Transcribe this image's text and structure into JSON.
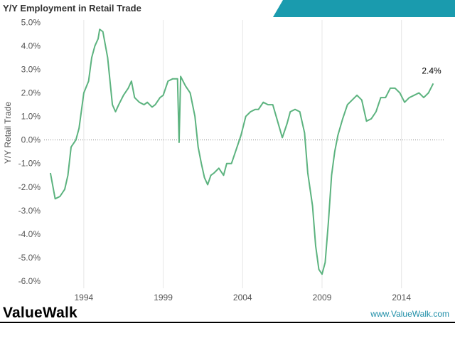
{
  "title": "Y/Y Employment in Retail Trade",
  "brand": {
    "name": "ValueWalk",
    "url": "www.ValueWalk.com"
  },
  "colors": {
    "line": "#5cb37f",
    "banner": "#1a9bae",
    "grid": "#e6e6e6",
    "text": "#555555"
  },
  "chart_data": {
    "type": "line",
    "title": "Y/Y Employment in Retail Trade",
    "xlabel": "",
    "ylabel": "Y/Y Retail Trade",
    "xlim": [
      1991.5,
      2016.7
    ],
    "ylim": [
      -6.3,
      5.1
    ],
    "x_ticks": [
      1994,
      1999,
      2004,
      2009,
      2014
    ],
    "x_tick_labels": [
      "1994",
      "1999",
      "2004",
      "2009",
      "2014"
    ],
    "y_ticks": [
      -6,
      -5,
      -4,
      -3,
      -2,
      -1,
      0,
      1,
      2,
      3,
      4,
      5
    ],
    "y_tick_labels": [
      "-6.0%",
      "-5.0%",
      "-4.0%",
      "-3.0%",
      "-2.0%",
      "-1.0%",
      "0.0%",
      "1.0%",
      "2.0%",
      "3.0%",
      "4.0%",
      "5.0%"
    ],
    "grid": "vertical",
    "zero_line": true,
    "annotation": {
      "text": "2.4%",
      "x": 2016.0,
      "y": 2.4
    },
    "series": [
      {
        "x": [
          1991.9,
          2000.0,
          1992.2,
          1992.5,
          1992.8,
          1993.0,
          1993.2,
          1993.5,
          1993.7,
          1994.0,
          1994.3,
          1994.5,
          1994.7,
          1994.9,
          1995.0,
          1995.2,
          1995.5,
          1995.8,
          1996.0,
          1996.2,
          1996.5,
          1996.8,
          1997.0,
          1997.2,
          1997.5,
          1997.8,
          1998.0,
          1998.3,
          1998.5,
          1998.8,
          1999.0,
          1999.3,
          1999.6,
          1999.9,
          2000.1,
          2000.4,
          2000.7,
          2001.0,
          2001.2,
          2001.4,
          2001.6,
          2001.8,
          2002.0,
          2002.2,
          2002.5,
          2002.8,
          2003.0,
          2003.3,
          2003.6,
          2003.9,
          2004.2,
          2004.5,
          2004.8,
          2005.0,
          2005.3,
          2005.6,
          2005.9,
          2006.2,
          2006.5,
          2006.8,
          2007.0,
          2007.3,
          2007.6,
          2007.9,
          2008.1,
          2008.4,
          2008.6,
          2008.8,
          2009.0,
          2009.2,
          2009.4,
          2009.6,
          2009.8,
          2010.0,
          2010.3,
          2010.6,
          2010.9,
          2011.2,
          2011.5,
          2011.8,
          2012.1,
          2012.4,
          2012.7,
          2013.0,
          2013.3,
          2013.6,
          2013.9,
          2014.2,
          2014.5,
          2014.8,
          2015.1,
          2015.4,
          2015.7,
          2016.0
        ],
        "y": [
          -1.4,
          -0.1,
          -2.5,
          -2.4,
          -2.1,
          -1.5,
          -0.3,
          0.0,
          0.5,
          2.0,
          2.5,
          3.5,
          4.0,
          4.3,
          4.7,
          4.6,
          3.5,
          1.5,
          1.2,
          1.5,
          1.9,
          2.2,
          2.5,
          1.8,
          1.6,
          1.5,
          1.6,
          1.4,
          1.5,
          1.8,
          1.9,
          2.5,
          2.6,
          2.6,
          2.7,
          2.3,
          2.0,
          1.0,
          -0.3,
          -1.0,
          -1.6,
          -1.9,
          -1.5,
          -1.4,
          -1.2,
          -1.5,
          -1.0,
          -1.0,
          -0.4,
          0.2,
          1.0,
          1.2,
          1.3,
          1.3,
          1.6,
          1.5,
          1.5,
          0.8,
          0.1,
          0.7,
          1.2,
          1.3,
          1.2,
          0.3,
          -1.4,
          -2.8,
          -4.5,
          -5.5,
          -5.7,
          -5.2,
          -3.5,
          -1.5,
          -0.5,
          0.2,
          0.9,
          1.5,
          1.7,
          1.9,
          1.7,
          0.8,
          0.9,
          1.2,
          1.8,
          1.8,
          2.2,
          2.2,
          2.0,
          1.6,
          1.8,
          1.9,
          2.0,
          1.8,
          2.0,
          2.4
        ]
      }
    ]
  }
}
